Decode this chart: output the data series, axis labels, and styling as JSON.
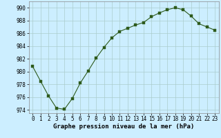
{
  "x": [
    0,
    1,
    2,
    3,
    4,
    5,
    6,
    7,
    8,
    9,
    10,
    11,
    12,
    13,
    14,
    15,
    16,
    17,
    18,
    19,
    20,
    21,
    22,
    23
  ],
  "y": [
    980.8,
    978.5,
    976.2,
    974.3,
    974.1,
    975.8,
    978.2,
    980.1,
    982.1,
    983.8,
    985.3,
    986.3,
    986.8,
    987.3,
    987.7,
    988.6,
    989.2,
    989.7,
    990.0,
    989.7,
    988.7,
    987.5,
    987.0,
    986.5
  ],
  "line_color": "#2d5a1b",
  "marker_color": "#2d5a1b",
  "bg_color": "#cceeff",
  "grid_color": "#aacccc",
  "xlabel": "Graphe pression niveau de la mer (hPa)",
  "ylim": [
    973.5,
    991.0
  ],
  "yticks": [
    974,
    976,
    978,
    980,
    982,
    984,
    986,
    988,
    990
  ],
  "xticks": [
    0,
    1,
    2,
    3,
    4,
    5,
    6,
    7,
    8,
    9,
    10,
    11,
    12,
    13,
    14,
    15,
    16,
    17,
    18,
    19,
    20,
    21,
    22,
    23
  ],
  "tick_fontsize": 5.5,
  "xlabel_fontsize": 6.5,
  "marker_size": 2.5,
  "line_width": 0.8
}
